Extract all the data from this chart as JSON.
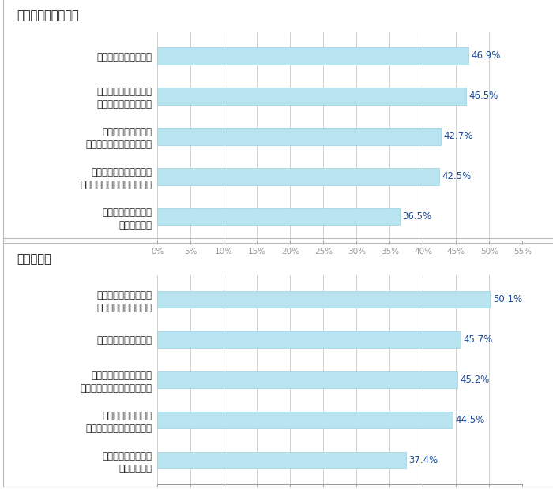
{
  "chart1_title": "＜固定期間選択型＞",
  "chart1_labels": [
    "優遇金利の適用ルール",
    "将来の金利上昇に伴う\n返済額増加への対応策",
    "金利タイプが異なる\n住宅ローンと比較した特徴",
    "将来の金利上昇によって\nどれくらい返済額が増えるか",
    "適用金利や返済額の\n見直しルール"
  ],
  "chart1_values": [
    46.9,
    46.5,
    42.7,
    42.5,
    36.5
  ],
  "chart2_title": "＜変動型＞",
  "chart2_labels": [
    "将来の金利上昇に伴う\n返済額増加への対応策",
    "優遇金利の適用ルール",
    "将来の金利上昇によって\nどれくらい返済額が増えるか",
    "金利タイプが異なる\n住宅ローンと比較した特徴",
    "適用金利や返済額の\n見直しルール"
  ],
  "chart2_values": [
    50.1,
    45.7,
    45.2,
    44.5,
    37.4
  ],
  "bar_color": "#b8e4f0",
  "bar_edge_color": "#9ad0e4",
  "value_color": "#1a4a9a",
  "title_color": "#111111",
  "label_color": "#222222",
  "axis_color": "#999999",
  "grid_color": "#d0d0d0",
  "background_color": "#ffffff",
  "panel_border_color": "#bbbbbb",
  "xlim": [
    0,
    55
  ],
  "xticks": [
    0,
    5,
    10,
    15,
    20,
    25,
    30,
    35,
    40,
    45,
    50,
    55
  ],
  "bar_height": 0.42,
  "title_fontsize": 10.5,
  "label_fontsize": 8.5,
  "tick_fontsize": 7.5,
  "value_fontsize": 8.5
}
